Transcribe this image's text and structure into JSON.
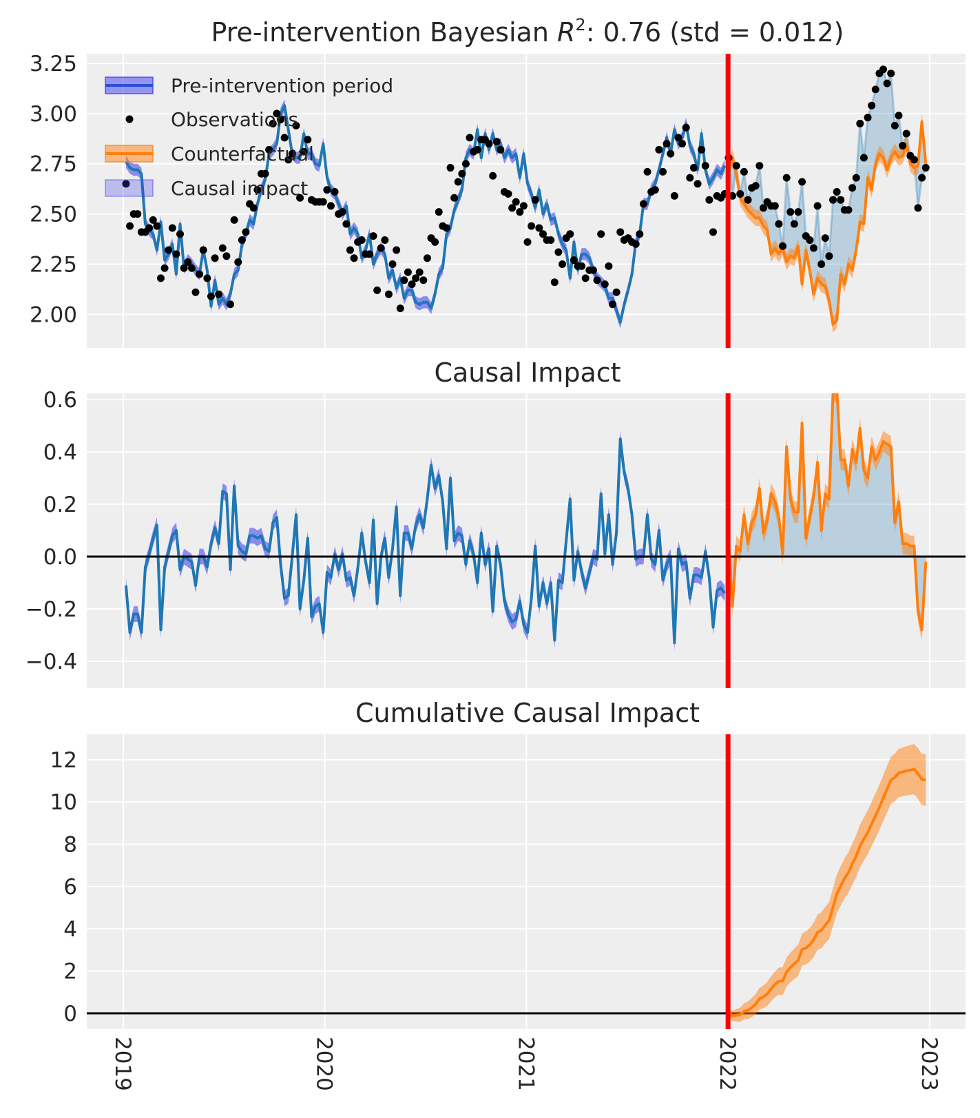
{
  "titles": {
    "panel1": {
      "prefix": "Pre-intervention Bayesian ",
      "symbol": "R",
      "exponent": "2",
      "suffix": ": 0.76 (std = 0.012)"
    },
    "panel2": "Causal Impact",
    "panel3": "Cumulative Causal Impact"
  },
  "legend": {
    "placement": "top-left",
    "items": [
      {
        "label": "Pre-intervention period",
        "symbol": "band-with-line",
        "color": "#2a4fd6"
      },
      {
        "label": "Observations",
        "symbol": "dot",
        "color": "#000000"
      },
      {
        "label": "Counterfactual",
        "symbol": "band-with-line",
        "color": "#ff7f0e"
      },
      {
        "label": "Causal impact",
        "symbol": "band",
        "color": "#8080f0"
      }
    ]
  },
  "colors": {
    "background": "#eeeeee",
    "grid": "#ffffff",
    "fit": "#1f77b4",
    "fit_band": "#3a3af0",
    "counterfactual": "#ff7f0e",
    "impact_fill": "#1f77b4",
    "observations": "#000000",
    "intervention": "#ff0000",
    "zero_line": "#000000"
  },
  "chart_data": {
    "type": "line",
    "intervention_date": "2022-01-01",
    "grid": true,
    "xlim": [
      "2018-10-27",
      "2023-03-07"
    ],
    "x_ticks": [
      "2019",
      "2020",
      "2021",
      "2022",
      "2023"
    ],
    "dates": [
      "2019-01-06",
      "2019-01-13",
      "2019-01-20",
      "2019-01-27",
      "2019-02-03",
      "2019-02-10",
      "2019-02-17",
      "2019-02-24",
      "2019-03-03",
      "2019-03-10",
      "2019-03-17",
      "2019-03-24",
      "2019-03-31",
      "2019-04-07",
      "2019-04-14",
      "2019-04-21",
      "2019-04-28",
      "2019-05-05",
      "2019-05-12",
      "2019-05-19",
      "2019-05-26",
      "2019-06-02",
      "2019-06-09",
      "2019-06-16",
      "2019-06-23",
      "2019-06-30",
      "2019-07-07",
      "2019-07-14",
      "2019-07-21",
      "2019-07-28",
      "2019-08-04",
      "2019-08-11",
      "2019-08-18",
      "2019-08-25",
      "2019-09-01",
      "2019-09-08",
      "2019-09-15",
      "2019-09-22",
      "2019-09-29",
      "2019-10-06",
      "2019-10-13",
      "2019-10-20",
      "2019-10-27",
      "2019-11-03",
      "2019-11-10",
      "2019-11-17",
      "2019-11-24",
      "2019-12-01",
      "2019-12-08",
      "2019-12-15",
      "2019-12-22",
      "2019-12-29",
      "2020-01-05",
      "2020-01-12",
      "2020-01-19",
      "2020-01-26",
      "2020-02-02",
      "2020-02-09",
      "2020-02-16",
      "2020-02-23",
      "2020-03-01",
      "2020-03-08",
      "2020-03-15",
      "2020-03-22",
      "2020-03-29",
      "2020-04-05",
      "2020-04-12",
      "2020-04-19",
      "2020-04-26",
      "2020-05-03",
      "2020-05-10",
      "2020-05-17",
      "2020-05-24",
      "2020-05-31",
      "2020-06-07",
      "2020-06-14",
      "2020-06-21",
      "2020-06-28",
      "2020-07-05",
      "2020-07-12",
      "2020-07-19",
      "2020-07-26",
      "2020-08-02",
      "2020-08-09",
      "2020-08-16",
      "2020-08-23",
      "2020-08-30",
      "2020-09-06",
      "2020-09-13",
      "2020-09-20",
      "2020-09-27",
      "2020-10-04",
      "2020-10-11",
      "2020-10-18",
      "2020-10-25",
      "2020-11-01",
      "2020-11-08",
      "2020-11-15",
      "2020-11-22",
      "2020-11-29",
      "2020-12-06",
      "2020-12-13",
      "2020-12-20",
      "2020-12-27",
      "2021-01-03",
      "2021-01-10",
      "2021-01-17",
      "2021-01-24",
      "2021-01-31",
      "2021-02-07",
      "2021-02-14",
      "2021-02-21",
      "2021-02-28",
      "2021-03-07",
      "2021-03-14",
      "2021-03-21",
      "2021-03-28",
      "2021-04-04",
      "2021-04-11",
      "2021-04-18",
      "2021-04-25",
      "2021-05-02",
      "2021-05-09",
      "2021-05-16",
      "2021-05-23",
      "2021-05-30",
      "2021-06-06",
      "2021-06-13",
      "2021-06-20",
      "2021-06-27",
      "2021-07-04",
      "2021-07-11",
      "2021-07-18",
      "2021-07-25",
      "2021-08-01",
      "2021-08-08",
      "2021-08-15",
      "2021-08-22",
      "2021-08-29",
      "2021-09-05",
      "2021-09-12",
      "2021-09-19",
      "2021-09-26",
      "2021-10-03",
      "2021-10-10",
      "2021-10-17",
      "2021-10-24",
      "2021-10-31",
      "2021-11-07",
      "2021-11-14",
      "2021-11-21",
      "2021-11-28",
      "2021-12-05",
      "2021-12-12",
      "2021-12-19",
      "2021-12-26",
      "2022-01-02",
      "2022-01-09",
      "2022-01-16",
      "2022-01-23",
      "2022-01-30",
      "2022-02-06",
      "2022-02-13",
      "2022-02-20",
      "2022-02-27",
      "2022-03-06",
      "2022-03-13",
      "2022-03-20",
      "2022-03-27",
      "2022-04-03",
      "2022-04-10",
      "2022-04-17",
      "2022-04-24",
      "2022-05-01",
      "2022-05-08",
      "2022-05-15",
      "2022-05-22",
      "2022-05-29",
      "2022-06-05",
      "2022-06-12",
      "2022-06-19",
      "2022-06-26",
      "2022-07-03",
      "2022-07-10",
      "2022-07-17",
      "2022-07-24",
      "2022-07-31",
      "2022-08-07",
      "2022-08-14",
      "2022-08-21",
      "2022-08-28",
      "2022-09-04",
      "2022-09-11",
      "2022-09-18",
      "2022-09-25",
      "2022-10-02",
      "2022-10-09",
      "2022-10-16",
      "2022-10-23",
      "2022-10-30",
      "2022-11-06",
      "2022-11-13",
      "2022-11-20",
      "2022-11-27",
      "2022-12-04",
      "2022-12-11",
      "2022-12-18",
      "2022-12-25"
    ],
    "observations": [
      2.65,
      2.44,
      2.5,
      2.5,
      2.41,
      2.41,
      2.43,
      2.47,
      2.44,
      2.18,
      2.23,
      2.32,
      2.43,
      2.3,
      2.4,
      2.23,
      2.26,
      2.23,
      2.11,
      2.2,
      2.32,
      2.18,
      2.09,
      2.28,
      2.1,
      2.33,
      2.29,
      2.05,
      2.47,
      2.26,
      2.37,
      2.41,
      2.55,
      2.53,
      2.62,
      2.7,
      2.7,
      2.82,
      2.95,
      3.0,
      2.97,
      2.88,
      2.77,
      2.8,
      2.94,
      2.58,
      2.81,
      2.87,
      2.57,
      2.56,
      2.56,
      2.56,
      2.62,
      2.54,
      2.61,
      2.5,
      2.51,
      2.45,
      2.32,
      2.28,
      2.36,
      2.37,
      2.3,
      2.3,
      2.39,
      2.12,
      2.33,
      2.37,
      2.1,
      2.25,
      2.32,
      2.03,
      2.17,
      2.21,
      2.15,
      2.18,
      2.21,
      2.17,
      2.28,
      2.38,
      2.36,
      2.51,
      2.44,
      2.43,
      2.73,
      2.58,
      2.66,
      2.7,
      2.75,
      2.88,
      2.81,
      2.82,
      2.87,
      2.87,
      2.85,
      2.69,
      2.86,
      2.82,
      2.61,
      2.6,
      2.53,
      2.56,
      2.51,
      2.54,
      2.36,
      2.44,
      2.57,
      2.43,
      2.4,
      2.37,
      2.37,
      2.16,
      2.31,
      2.25,
      2.38,
      2.4,
      2.27,
      2.24,
      2.24,
      2.18,
      2.22,
      2.22,
      2.17,
      2.4,
      2.15,
      2.24,
      2.05,
      2.11,
      2.41,
      2.37,
      2.38,
      2.36,
      2.35,
      2.4,
      2.55,
      2.71,
      2.61,
      2.62,
      2.82,
      2.71,
      2.85,
      2.8,
      2.59,
      2.88,
      2.85,
      2.93,
      2.68,
      2.73,
      2.65,
      2.82,
      2.74,
      2.57,
      2.41,
      2.59,
      2.58,
      2.6,
      2.78,
      2.59,
      2.74,
      2.6,
      2.71,
      2.57,
      2.63,
      2.64,
      2.74,
      2.53,
      2.56,
      2.54,
      2.54,
      2.45,
      2.34,
      2.68,
      2.51,
      2.45,
      2.51,
      2.66,
      2.39,
      2.37,
      2.33,
      2.54,
      2.25,
      2.38,
      2.29,
      2.57,
      2.61,
      2.57,
      2.52,
      2.52,
      2.63,
      2.68,
      2.95,
      2.78,
      2.98,
      3.04,
      3.12,
      3.2,
      3.22,
      3.15,
      3.2,
      2.94,
      2.99,
      2.84,
      2.9,
      2.79,
      2.77,
      2.53,
      2.68,
      2.73
    ],
    "pre_intervention_fit": [
      2.76,
      2.73,
      2.72,
      2.72,
      2.7,
      2.45,
      2.42,
      2.4,
      2.32,
      2.46,
      2.27,
      2.3,
      2.35,
      2.2,
      2.45,
      2.23,
      2.27,
      2.25,
      2.22,
      2.2,
      2.32,
      2.22,
      2.04,
      2.17,
      2.05,
      2.08,
      2.05,
      2.1,
      2.2,
      2.22,
      2.35,
      2.4,
      2.47,
      2.45,
      2.55,
      2.62,
      2.67,
      2.8,
      2.82,
      2.85,
      3.0,
      3.04,
      2.92,
      2.8,
      2.78,
      2.78,
      2.9,
      2.8,
      2.8,
      2.75,
      2.74,
      2.85,
      2.68,
      2.62,
      2.6,
      2.55,
      2.5,
      2.54,
      2.4,
      2.43,
      2.4,
      2.28,
      2.32,
      2.4,
      2.25,
      2.3,
      2.33,
      2.3,
      2.18,
      2.22,
      2.13,
      2.18,
      2.08,
      2.12,
      2.12,
      2.06,
      2.05,
      2.06,
      2.06,
      2.03,
      2.1,
      2.2,
      2.23,
      2.4,
      2.43,
      2.52,
      2.57,
      2.62,
      2.78,
      2.82,
      2.8,
      2.92,
      2.78,
      2.9,
      2.82,
      2.9,
      2.82,
      2.85,
      2.78,
      2.82,
      2.78,
      2.8,
      2.68,
      2.8,
      2.65,
      2.6,
      2.53,
      2.62,
      2.5,
      2.55,
      2.47,
      2.48,
      2.4,
      2.35,
      2.32,
      2.18,
      2.36,
      2.22,
      2.3,
      2.3,
      2.28,
      2.22,
      2.18,
      2.16,
      2.14,
      2.08,
      2.08,
      2.02,
      1.96,
      2.05,
      2.12,
      2.2,
      2.36,
      2.4,
      2.55,
      2.55,
      2.62,
      2.65,
      2.72,
      2.8,
      2.88,
      2.8,
      2.92,
      2.85,
      2.88,
      2.95,
      2.84,
      2.8,
      2.72,
      2.9,
      2.72,
      2.65,
      2.68,
      2.72,
      2.7,
      2.74
    ],
    "counterfactual": [
      2.72,
      2.78,
      2.7,
      2.58,
      2.55,
      2.52,
      2.5,
      2.48,
      2.48,
      2.44,
      2.42,
      2.3,
      2.33,
      2.3,
      2.33,
      2.26,
      2.29,
      2.28,
      2.34,
      2.15,
      2.32,
      2.22,
      2.1,
      2.18,
      2.15,
      2.14,
      2.07,
      1.95,
      1.97,
      2.2,
      2.15,
      2.25,
      2.22,
      2.32,
      2.46,
      2.45,
      2.68,
      2.62,
      2.75,
      2.8,
      2.78,
      2.72,
      2.78,
      2.81,
      2.78,
      2.79,
      2.85,
      2.75,
      2.73,
      2.74,
      2.96,
      2.75
    ],
    "interval_halfwidth": {
      "fit": 0.03,
      "counterfactual": 0.04,
      "cumulative_per_sqrt_week": 0.17
    },
    "panels": [
      {
        "title_key": "panel1",
        "ylim": [
          1.833,
          3.298
        ],
        "y_ticks": [
          "2.00",
          "2.25",
          "2.50",
          "2.75",
          "3.00",
          "3.25"
        ],
        "y_tick_values": [
          2.0,
          2.25,
          2.5,
          2.75,
          3.0,
          3.25
        ]
      },
      {
        "title_key": "panel2",
        "ylim": [
          -0.503,
          0.624
        ],
        "y_ticks": [
          "−0.4",
          "−0.2",
          "0.0",
          "0.2",
          "0.4",
          "0.6"
        ],
        "y_tick_values": [
          -0.4,
          -0.2,
          0,
          0.2,
          0.4,
          0.6
        ]
      },
      {
        "title_key": "panel3",
        "ylim": [
          -0.75,
          13.2
        ],
        "y_ticks": [
          "0",
          "2",
          "4",
          "6",
          "8",
          "10",
          "12"
        ],
        "y_tick_values": [
          0,
          2,
          4,
          6,
          8,
          10,
          12
        ]
      }
    ]
  }
}
